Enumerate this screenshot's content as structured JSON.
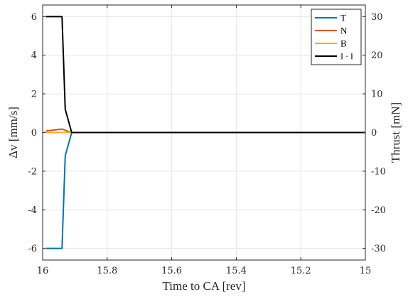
{
  "chart_data": {
    "type": "line",
    "xlabel": "Time to CA [rev]",
    "ylabel_left": "Δv [mm/s]",
    "ylabel_right": "Thrust [mN]",
    "x_reversed": true,
    "xlim": [
      15,
      16
    ],
    "ylim_left": [
      -6.6,
      6.6
    ],
    "ylim_right": [
      -33,
      33
    ],
    "x_ticks": [
      16,
      15.8,
      15.6,
      15.4,
      15.2,
      15
    ],
    "x_tick_labels": [
      "16",
      "15.8",
      "15.6",
      "15.4",
      "15.2",
      "15"
    ],
    "y_left_ticks": [
      6,
      4,
      2,
      0,
      -2,
      -4,
      -6
    ],
    "y_left_tick_labels": [
      "6",
      "4",
      "2",
      "0",
      "-2",
      "-4",
      "-6"
    ],
    "y_right_ticks": [
      30,
      20,
      10,
      0,
      -10,
      -20,
      -30
    ],
    "y_right_tick_labels": [
      "30",
      "20",
      "10",
      "0",
      "-10",
      "-20",
      "-30"
    ],
    "grid": true,
    "legend_position": "top-right",
    "series": [
      {
        "name": "T",
        "color": "#0072BD",
        "axis": "left",
        "x": [
          15.99,
          15.94,
          15.93,
          15.91,
          15
        ],
        "y": [
          -6,
          -6,
          -1.2,
          0,
          0
        ]
      },
      {
        "name": "N",
        "color": "#D95319",
        "axis": "left",
        "x": [
          15.99,
          15.94,
          15.92,
          15.91,
          15
        ],
        "y": [
          0.08,
          0.18,
          0.05,
          0,
          0
        ]
      },
      {
        "name": "B",
        "color": "#EDB120",
        "axis": "left",
        "x": [
          15.99,
          15.91,
          15
        ],
        "y": [
          0,
          0,
          0
        ]
      },
      {
        "name": "‖ · ‖",
        "color": "#000000",
        "axis": "left",
        "x": [
          15.99,
          15.94,
          15.93,
          15.91,
          15
        ],
        "y": [
          6,
          6,
          1.2,
          0,
          0
        ]
      }
    ]
  }
}
